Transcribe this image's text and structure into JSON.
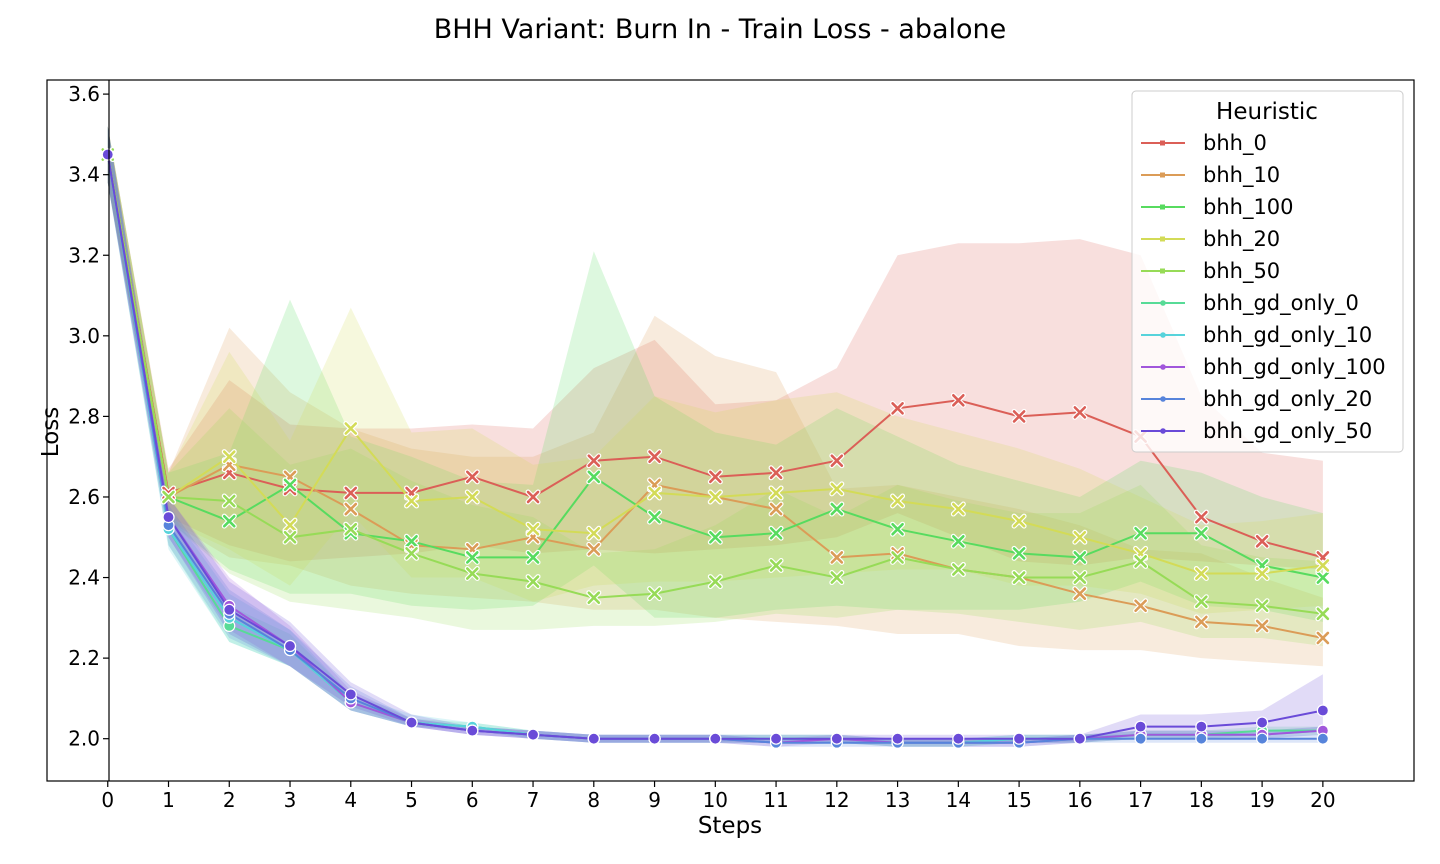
{
  "chart_data": {
    "type": "line",
    "title": "BHH Variant: Burn In - Train Loss - abalone",
    "xlabel": "Steps",
    "ylabel": "Loss",
    "x": [
      0,
      1,
      2,
      3,
      4,
      5,
      6,
      7,
      8,
      9,
      10,
      11,
      12,
      13,
      14,
      15,
      16,
      17,
      18,
      19,
      20
    ],
    "xlim": [
      -1,
      21.5
    ],
    "ylim": [
      1.895,
      3.635
    ],
    "x_ticks": [
      "0",
      "1",
      "2",
      "3",
      "4",
      "5",
      "6",
      "7",
      "8",
      "9",
      "10",
      "11",
      "12",
      "13",
      "14",
      "15",
      "16",
      "17",
      "18",
      "19",
      "20"
    ],
    "y_ticks": [
      "2.0",
      "2.2",
      "2.4",
      "2.6",
      "2.8",
      "3.0",
      "3.2",
      "3.4",
      "3.6"
    ],
    "y_tick_values": [
      2.0,
      2.2,
      2.4,
      2.6,
      2.8,
      3.0,
      3.2,
      3.4,
      3.6
    ],
    "grid": false,
    "legend": {
      "title": "Heuristic",
      "position": "top-right"
    },
    "series": [
      {
        "name": "bhh_0",
        "color": "#db5f57",
        "marker": "x",
        "values": [
          3.45,
          2.61,
          2.66,
          2.62,
          2.61,
          2.61,
          2.65,
          2.6,
          2.69,
          2.7,
          2.65,
          2.66,
          2.69,
          2.82,
          2.84,
          2.8,
          2.81,
          2.75,
          2.55,
          2.49,
          2.45
        ],
        "lower": [
          3.38,
          2.55,
          2.48,
          2.44,
          2.45,
          2.46,
          2.48,
          2.46,
          2.47,
          2.46,
          2.47,
          2.48,
          2.5,
          2.56,
          2.5,
          2.44,
          2.43,
          2.45,
          2.44,
          2.43,
          2.42
        ],
        "upper": [
          3.52,
          2.67,
          2.89,
          2.78,
          2.77,
          2.77,
          2.78,
          2.77,
          2.92,
          2.99,
          2.83,
          2.84,
          2.92,
          3.2,
          3.23,
          3.23,
          3.24,
          3.2,
          2.85,
          2.71,
          2.69
        ]
      },
      {
        "name": "bhh_10",
        "color": "#db9c57",
        "marker": "x",
        "values": [
          3.45,
          2.6,
          2.68,
          2.65,
          2.57,
          2.48,
          2.47,
          2.5,
          2.47,
          2.63,
          2.6,
          2.57,
          2.45,
          2.46,
          2.42,
          2.4,
          2.36,
          2.33,
          2.29,
          2.28,
          2.25
        ],
        "lower": [
          3.38,
          2.54,
          2.45,
          2.43,
          2.38,
          2.36,
          2.35,
          2.34,
          2.32,
          2.32,
          2.3,
          2.29,
          2.28,
          2.26,
          2.26,
          2.23,
          2.22,
          2.22,
          2.2,
          2.19,
          2.18
        ],
        "upper": [
          3.52,
          2.66,
          3.02,
          2.86,
          2.77,
          2.72,
          2.7,
          2.7,
          2.76,
          3.05,
          2.95,
          2.91,
          2.62,
          2.63,
          2.6,
          2.57,
          2.53,
          2.47,
          2.46,
          2.4,
          2.35
        ]
      },
      {
        "name": "bhh_100",
        "color": "#57db5f",
        "marker": "x",
        "values": [
          3.45,
          2.6,
          2.54,
          2.63,
          2.51,
          2.49,
          2.45,
          2.45,
          2.65,
          2.55,
          2.5,
          2.51,
          2.57,
          2.52,
          2.49,
          2.46,
          2.45,
          2.51,
          2.51,
          2.43,
          2.4
        ],
        "lower": [
          3.38,
          2.54,
          2.42,
          2.36,
          2.36,
          2.33,
          2.32,
          2.33,
          2.43,
          2.3,
          2.3,
          2.32,
          2.33,
          2.32,
          2.32,
          2.32,
          2.34,
          2.39,
          2.33,
          2.32,
          2.29
        ],
        "upper": [
          3.52,
          2.66,
          2.71,
          3.09,
          2.75,
          2.7,
          2.64,
          2.63,
          3.21,
          2.85,
          2.76,
          2.73,
          2.82,
          2.75,
          2.68,
          2.64,
          2.6,
          2.69,
          2.66,
          2.6,
          2.56
        ]
      },
      {
        "name": "bhh_20",
        "color": "#d3db57",
        "marker": "x",
        "values": [
          3.45,
          2.6,
          2.7,
          2.53,
          2.77,
          2.59,
          2.6,
          2.52,
          2.51,
          2.61,
          2.6,
          2.61,
          2.62,
          2.59,
          2.57,
          2.54,
          2.5,
          2.46,
          2.41,
          2.41,
          2.43
        ],
        "lower": [
          3.38,
          2.54,
          2.47,
          2.38,
          2.56,
          2.4,
          2.4,
          2.34,
          2.38,
          2.39,
          2.39,
          2.4,
          2.41,
          2.42,
          2.42,
          2.38,
          2.38,
          2.36,
          2.31,
          2.32,
          2.33
        ],
        "upper": [
          3.52,
          2.66,
          2.96,
          2.74,
          3.07,
          2.76,
          2.77,
          2.68,
          2.7,
          2.85,
          2.81,
          2.84,
          2.86,
          2.8,
          2.76,
          2.72,
          2.67,
          2.6,
          2.53,
          2.54,
          2.56
        ]
      },
      {
        "name": "bhh_50",
        "color": "#97db57",
        "marker": "x",
        "values": [
          3.45,
          2.6,
          2.59,
          2.5,
          2.52,
          2.46,
          2.41,
          2.39,
          2.35,
          2.36,
          2.39,
          2.43,
          2.4,
          2.45,
          2.42,
          2.4,
          2.4,
          2.44,
          2.34,
          2.33,
          2.31
        ],
        "lower": [
          3.38,
          2.54,
          2.41,
          2.34,
          2.32,
          2.3,
          2.27,
          2.27,
          2.28,
          2.28,
          2.29,
          2.31,
          2.3,
          2.32,
          2.31,
          2.29,
          2.27,
          2.29,
          2.25,
          2.25,
          2.23
        ],
        "upper": [
          3.52,
          2.66,
          2.82,
          2.68,
          2.72,
          2.64,
          2.58,
          2.55,
          2.46,
          2.47,
          2.53,
          2.62,
          2.55,
          2.63,
          2.59,
          2.56,
          2.56,
          2.63,
          2.48,
          2.45,
          2.44
        ]
      },
      {
        "name": "bhh_gd_only_0",
        "color": "#57db97",
        "marker": "o",
        "values": [
          3.45,
          2.52,
          2.28,
          2.22,
          2.09,
          2.04,
          2.03,
          2.01,
          2.0,
          2.0,
          2.0,
          2.0,
          2.0,
          1.99,
          1.99,
          2.0,
          2.0,
          2.01,
          2.01,
          2.02,
          2.02
        ],
        "lower": [
          3.38,
          2.48,
          2.24,
          2.18,
          2.07,
          2.03,
          2.02,
          2.0,
          1.99,
          1.99,
          1.99,
          1.99,
          1.99,
          1.98,
          1.98,
          1.99,
          1.99,
          2.0,
          2.0,
          2.01,
          2.01
        ],
        "upper": [
          3.52,
          2.56,
          2.33,
          2.26,
          2.11,
          2.05,
          2.04,
          2.02,
          2.01,
          2.01,
          2.01,
          2.01,
          2.01,
          2.0,
          2.0,
          2.01,
          2.01,
          2.02,
          2.02,
          2.03,
          2.03
        ]
      },
      {
        "name": "bhh_gd_only_10",
        "color": "#57d3db",
        "marker": "o",
        "values": [
          3.45,
          2.52,
          2.3,
          2.22,
          2.09,
          2.04,
          2.03,
          2.01,
          2.0,
          2.0,
          2.0,
          2.0,
          2.0,
          1.99,
          1.99,
          2.0,
          2.0,
          2.01,
          2.01,
          2.01,
          2.02
        ],
        "lower": [
          3.38,
          2.47,
          2.24,
          2.18,
          2.07,
          2.03,
          2.02,
          2.0,
          1.99,
          1.99,
          1.99,
          1.99,
          1.99,
          1.98,
          1.98,
          1.99,
          1.99,
          2.0,
          2.0,
          2.0,
          2.01
        ],
        "upper": [
          3.52,
          2.57,
          2.36,
          2.27,
          2.11,
          2.06,
          2.04,
          2.02,
          2.01,
          2.01,
          2.01,
          2.01,
          2.01,
          2.0,
          2.0,
          2.01,
          2.01,
          2.02,
          2.02,
          2.02,
          2.03
        ]
      },
      {
        "name": "bhh_gd_only_100",
        "color": "#a157db",
        "marker": "o",
        "values": [
          3.45,
          2.55,
          2.33,
          2.23,
          2.09,
          2.04,
          2.02,
          2.01,
          2.0,
          2.0,
          2.0,
          1.99,
          2.0,
          1.99,
          1.99,
          1.99,
          2.0,
          2.01,
          2.01,
          2.01,
          2.02
        ],
        "lower": [
          3.38,
          2.5,
          2.27,
          2.18,
          2.07,
          2.03,
          2.01,
          2.0,
          1.99,
          1.99,
          1.99,
          1.98,
          1.99,
          1.98,
          1.98,
          1.98,
          1.99,
          2.0,
          2.0,
          2.0,
          2.01
        ],
        "upper": [
          3.52,
          2.6,
          2.4,
          2.28,
          2.12,
          2.05,
          2.03,
          2.02,
          2.01,
          2.01,
          2.01,
          2.0,
          2.01,
          2.0,
          2.0,
          2.0,
          2.01,
          2.02,
          2.02,
          2.02,
          2.03
        ]
      },
      {
        "name": "bhh_gd_only_20",
        "color": "#5784db",
        "marker": "o",
        "values": [
          3.45,
          2.53,
          2.31,
          2.22,
          2.1,
          2.04,
          2.02,
          2.01,
          2.0,
          2.0,
          2.0,
          1.99,
          1.99,
          1.99,
          1.99,
          1.99,
          2.0,
          2.0,
          2.0,
          2.0,
          2.0
        ],
        "lower": [
          3.38,
          2.48,
          2.25,
          2.18,
          2.07,
          2.03,
          2.01,
          2.0,
          1.99,
          1.99,
          1.99,
          1.98,
          1.98,
          1.98,
          1.98,
          1.98,
          1.99,
          1.99,
          1.99,
          1.99,
          1.99
        ],
        "upper": [
          3.52,
          2.58,
          2.37,
          2.27,
          2.13,
          2.05,
          2.03,
          2.02,
          2.01,
          2.01,
          2.01,
          2.0,
          2.0,
          2.0,
          2.0,
          2.0,
          2.01,
          2.01,
          2.01,
          2.01,
          2.01
        ]
      },
      {
        "name": "bhh_gd_only_50",
        "color": "#6a4bd8",
        "marker": "o",
        "values": [
          3.45,
          2.55,
          2.32,
          2.23,
          2.11,
          2.04,
          2.02,
          2.01,
          2.0,
          2.0,
          2.0,
          2.0,
          2.0,
          2.0,
          2.0,
          2.0,
          2.0,
          2.03,
          2.03,
          2.04,
          2.07
        ],
        "lower": [
          3.38,
          2.5,
          2.26,
          2.18,
          2.08,
          2.03,
          2.01,
          2.0,
          1.99,
          1.99,
          1.99,
          1.99,
          1.99,
          1.99,
          1.99,
          1.99,
          1.99,
          2.01,
          2.01,
          2.01,
          2.02
        ],
        "upper": [
          3.52,
          2.6,
          2.39,
          2.29,
          2.14,
          2.06,
          2.03,
          2.02,
          2.01,
          2.01,
          2.01,
          2.01,
          2.01,
          2.01,
          2.01,
          2.01,
          2.01,
          2.06,
          2.06,
          2.07,
          2.16
        ]
      }
    ]
  }
}
